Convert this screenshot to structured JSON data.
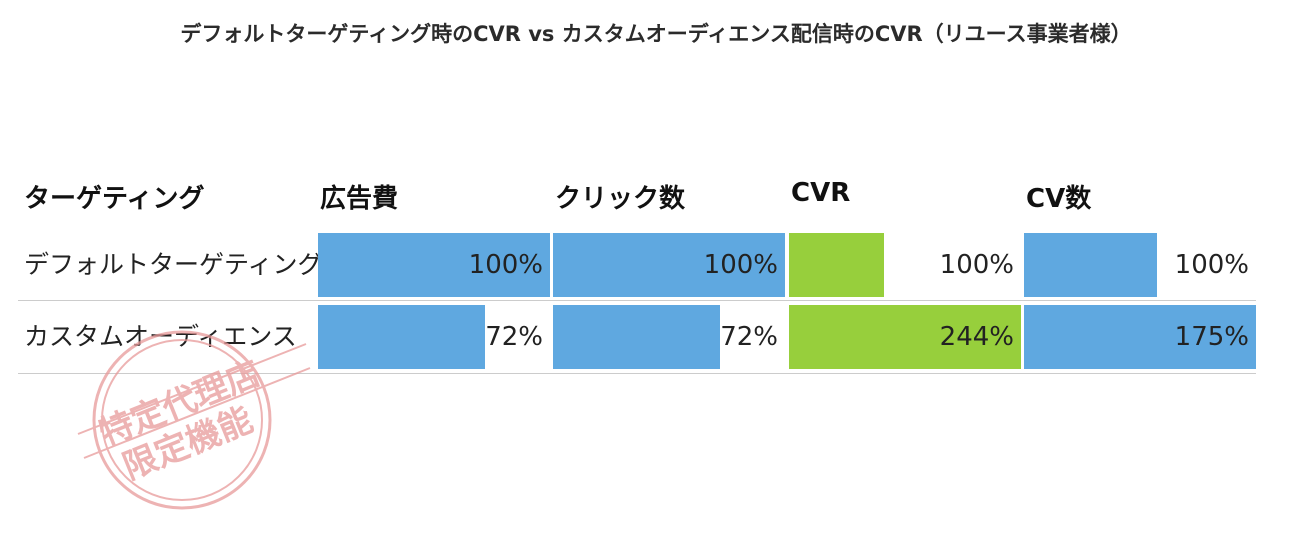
{
  "chart_data": {
    "type": "table",
    "title": "デフォルトターゲティング時のCVR vs カスタムオーディエンス配信時のCVR（リユース事業者様）",
    "columns": [
      "ターゲティング",
      "広告費",
      "クリック数",
      "CVR",
      "CV数"
    ],
    "rows": [
      {
        "label": "デフォルトターゲティング",
        "values": [
          100,
          100,
          100,
          100
        ],
        "labels": [
          "100%",
          "100%",
          "100%",
          "100%"
        ]
      },
      {
        "label": "カスタムオーディエンス",
        "values": [
          72,
          72,
          244,
          175
        ],
        "labels": [
          "72%",
          "72%",
          "244%",
          "175%"
        ]
      }
    ],
    "column_max": [
      100,
      100,
      244,
      175
    ],
    "unit": "%",
    "colors": [
      "#5fa8e0",
      "#5fa8e0",
      "#97cf3c",
      "#5fa8e0"
    ]
  },
  "stamp": {
    "line1": "特定代理店",
    "line2": "限定機能",
    "color": "#e89a9a"
  }
}
